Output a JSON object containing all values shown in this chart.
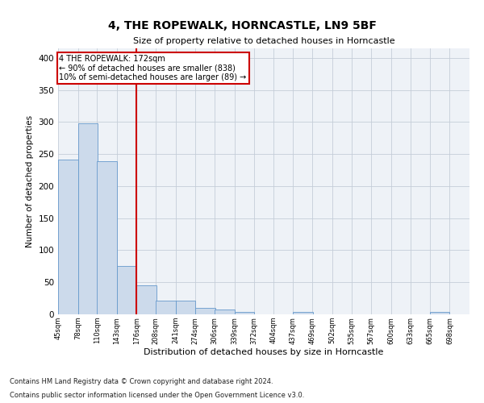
{
  "title": "4, THE ROPEWALK, HORNCASTLE, LN9 5BF",
  "subtitle": "Size of property relative to detached houses in Horncastle",
  "xlabel": "Distribution of detached houses by size in Horncastle",
  "ylabel": "Number of detached properties",
  "bar_color": "#ccdaeb",
  "bar_edge_color": "#6699cc",
  "background_color": "#eef2f7",
  "annotation_text": "4 THE ROPEWALK: 172sqm\n← 90% of detached houses are smaller (838)\n10% of semi-detached houses are larger (89) →",
  "vline_color": "#cc0000",
  "annotation_box_edgecolor": "#cc0000",
  "bins": [
    45,
    78,
    110,
    143,
    176,
    208,
    241,
    274,
    306,
    339,
    372,
    404,
    437,
    469,
    502,
    535,
    567,
    600,
    633,
    665,
    698
  ],
  "counts": [
    241,
    298,
    239,
    75,
    45,
    21,
    21,
    10,
    7,
    4,
    0,
    0,
    4,
    0,
    0,
    0,
    0,
    0,
    0,
    4
  ],
  "tick_labels": [
    "45sqm",
    "78sqm",
    "110sqm",
    "143sqm",
    "176sqm",
    "208sqm",
    "241sqm",
    "274sqm",
    "306sqm",
    "339sqm",
    "372sqm",
    "404sqm",
    "437sqm",
    "469sqm",
    "502sqm",
    "535sqm",
    "567sqm",
    "600sqm",
    "633sqm",
    "665sqm",
    "698sqm"
  ],
  "ylim": [
    0,
    415
  ],
  "yticks": [
    0,
    50,
    100,
    150,
    200,
    250,
    300,
    350,
    400
  ],
  "footnote1": "Contains HM Land Registry data © Crown copyright and database right 2024.",
  "footnote2": "Contains public sector information licensed under the Open Government Licence v3.0.",
  "grid_color": "#c5cdd8",
  "vline_x_bin_index": 4
}
